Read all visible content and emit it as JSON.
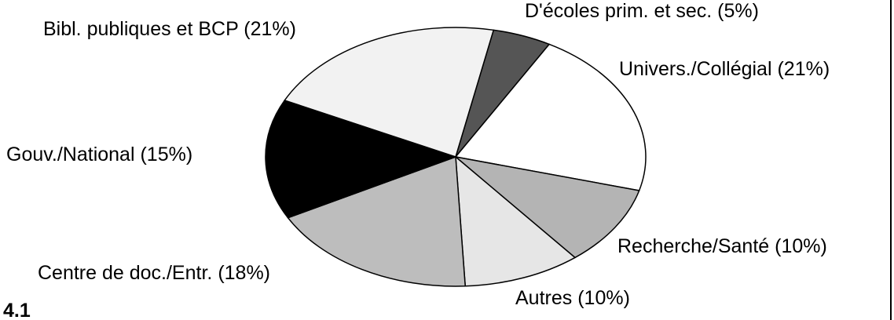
{
  "chart_data": {
    "type": "pie",
    "figure_label": "4.1",
    "categories": [
      "D'écoles prim. et sec.",
      "Univers./Collégial",
      "Recherche/Santé",
      "Autres",
      "Centre de doc./Entr.",
      "Gouv./National",
      "Bibl. publiques et BCP"
    ],
    "values": [
      5,
      21,
      10,
      10,
      18,
      15,
      21
    ],
    "value_labels": [
      "(5%)",
      "(21%)",
      "(10%)",
      "(10%)",
      "(18%)",
      "(15%)",
      "(21%)"
    ],
    "colors": [
      "#555555",
      "#ffffff",
      "#b4b4b4",
      "#e6e6e6",
      "#bdbdbd",
      "#000000",
      "#f2f2f2"
    ]
  }
}
